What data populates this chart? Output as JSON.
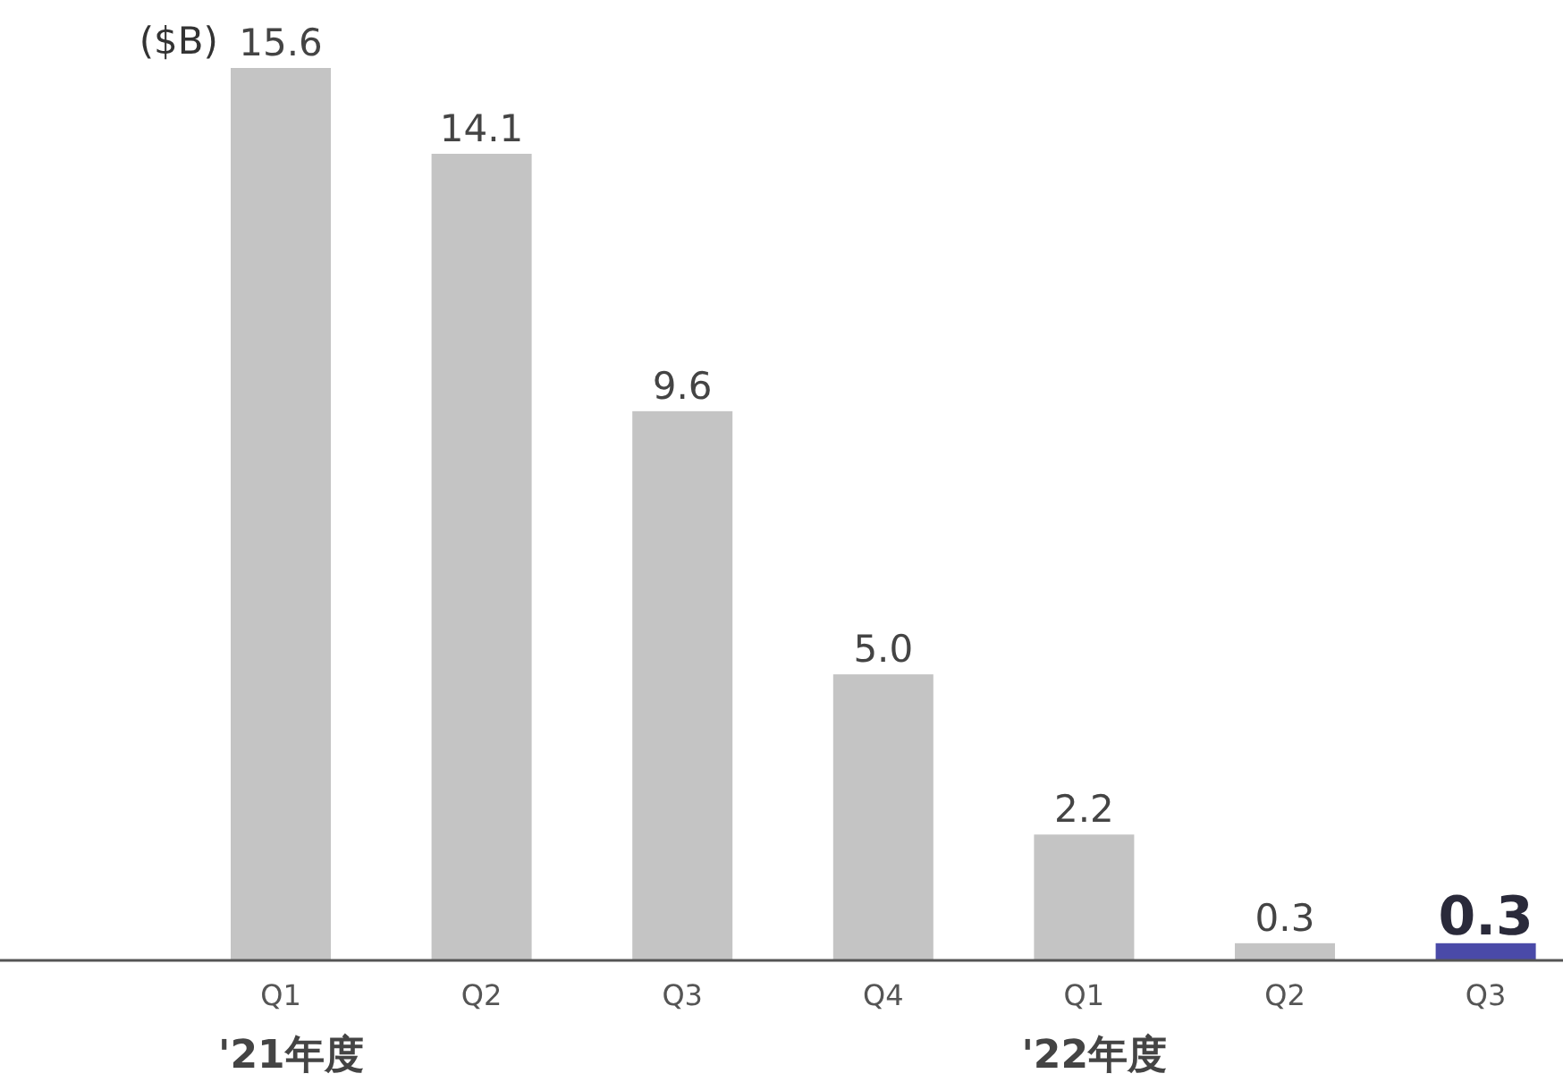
{
  "chart_data": {
    "type": "bar",
    "ylabel": "($B)",
    "categories": [
      "Q1",
      "Q2",
      "Q3",
      "Q4",
      "Q1",
      "Q2",
      "Q3"
    ],
    "values": [
      15.6,
      14.1,
      9.6,
      5.0,
      2.2,
      0.3,
      0.3
    ],
    "value_labels": [
      "15.6",
      "14.1",
      "9.6",
      "5.0",
      "2.2",
      "0.3",
      "0.3"
    ],
    "colors": [
      "#c4c4c4",
      "#c4c4c4",
      "#c4c4c4",
      "#c4c4c4",
      "#c4c4c4",
      "#c4c4c4",
      "#4a4aa8"
    ],
    "annotations": [
      "'21年度",
      "'22年度"
    ]
  }
}
